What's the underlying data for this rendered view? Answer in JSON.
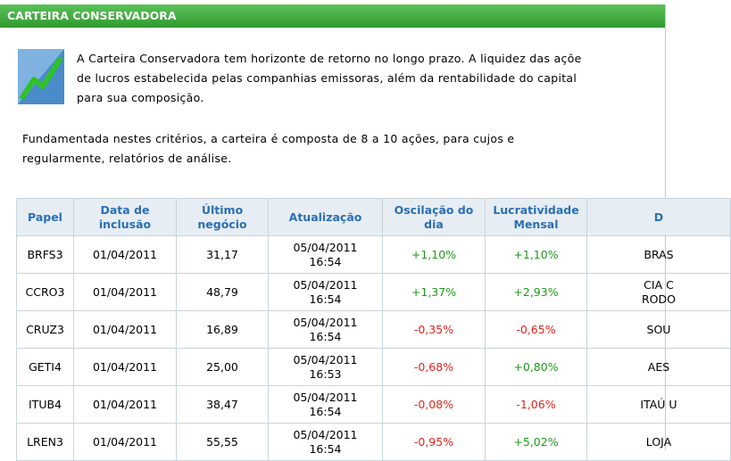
{
  "header": {
    "title": "CARTEIRA CONSERVADORA"
  },
  "intro": {
    "paragraph_1": [
      "A Carteira Conservadora tem horizonte de retorno no longo prazo. A liquidez das açõe",
      "de lucros estabelecida pelas companhias emissoras, além da rentabilidade do capital",
      "para sua composição."
    ],
    "paragraph_2": [
      "Fundamentada nestes critérios, a carteira é composta de 8 a 10 ações, para cujos e",
      "regularmente, relatórios de análise."
    ]
  },
  "table": {
    "columns": [
      "Papel",
      [
        "Data de",
        "inclusão"
      ],
      [
        "Último",
        "negócio"
      ],
      "Atualização",
      [
        "Oscilação do",
        "dia"
      ],
      [
        "Lucratividade",
        "Mensal"
      ],
      "D"
    ],
    "rows": [
      [
        "BRFS3",
        "01/04/2011",
        "31,17",
        [
          "05/04/2011",
          "16:54"
        ],
        "+1,10%",
        "+1,10%",
        "BRAS"
      ],
      [
        "CCRO3",
        "01/04/2011",
        "48,79",
        [
          "05/04/2011",
          "16:54"
        ],
        "+1,37%",
        "+2,93%",
        [
          "CIA C",
          "RODO"
        ]
      ],
      [
        "CRUZ3",
        "01/04/2011",
        "16,89",
        [
          "05/04/2011",
          "16:54"
        ],
        "-0,35%",
        "-0,65%",
        "SOU"
      ],
      [
        "GETI4",
        "01/04/2011",
        "25,00",
        [
          "05/04/2011",
          "16:53"
        ],
        "-0,68%",
        "+0,80%",
        "AES"
      ],
      [
        "ITUB4",
        "01/04/2011",
        "38,47",
        [
          "05/04/2011",
          "16:54"
        ],
        "-0,08%",
        "-1,06%",
        "ITAÚ U"
      ],
      [
        "LREN3",
        "01/04/2011",
        "55,55",
        [
          "05/04/2011",
          "16:54"
        ],
        "-0,95%",
        "+5,02%",
        "LOJA"
      ]
    ]
  }
}
